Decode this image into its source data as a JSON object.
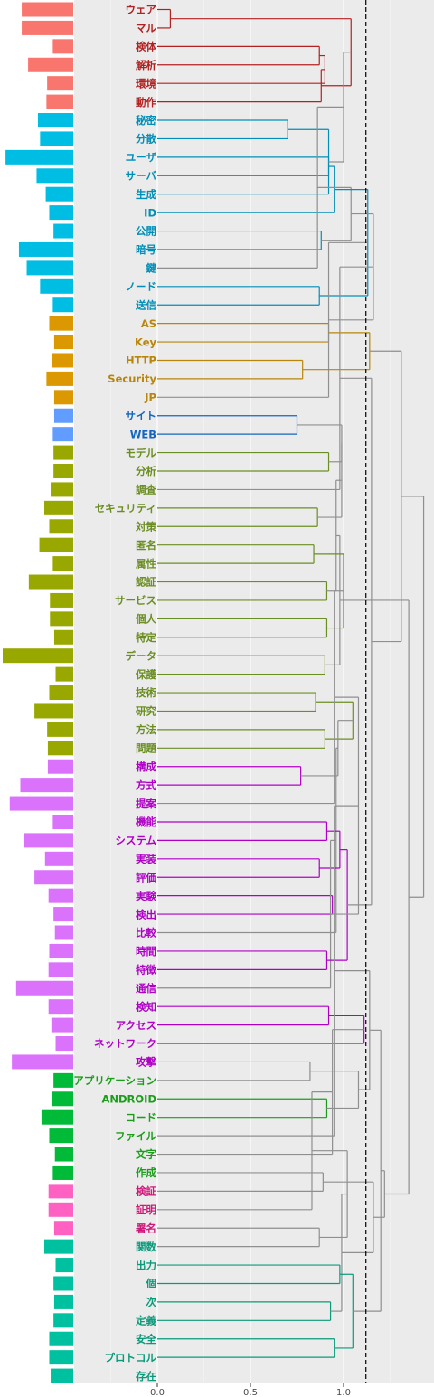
{
  "chart_data": {
    "type": "dendrogram",
    "title": "",
    "xlabel": "",
    "ylabel": "",
    "x_axis": {
      "range": [
        0,
        1.45
      ],
      "ticks": [
        0.0,
        0.5,
        1.0
      ],
      "tick_labels": [
        "0.0",
        "0.5",
        "1.0"
      ]
    },
    "cut_height": 1.12,
    "grid": true,
    "bars_max_value": 1.0,
    "group_colors": [
      "#b22222",
      "#008fb8",
      "#b8860b",
      "#1565c0",
      "#6b8e23",
      "#b000c8",
      "#1a9e1a",
      "#d0187a",
      "#0a9a7a"
    ],
    "bar_colors": [
      "#f8766d",
      "#00bde3",
      "#db9800",
      "#619cff",
      "#99a800",
      "#db72fb",
      "#00ba38",
      "#ff61c3",
      "#00c19f"
    ],
    "terms": [
      {
        "label": "ウェア",
        "group": 0,
        "bar": 0.73
      },
      {
        "label": "マル",
        "group": 0,
        "bar": 0.73
      },
      {
        "label": "検体",
        "group": 0,
        "bar": 0.29
      },
      {
        "label": "解析",
        "group": 0,
        "bar": 0.64
      },
      {
        "label": "環境",
        "group": 0,
        "bar": 0.37
      },
      {
        "label": "動作",
        "group": 0,
        "bar": 0.38
      },
      {
        "label": "秘密",
        "group": 1,
        "bar": 0.5
      },
      {
        "label": "分散",
        "group": 1,
        "bar": 0.47
      },
      {
        "label": "ユーザ",
        "group": 1,
        "bar": 0.96
      },
      {
        "label": "サーバ",
        "group": 1,
        "bar": 0.52
      },
      {
        "label": "生成",
        "group": 1,
        "bar": 0.39
      },
      {
        "label": "ID",
        "group": 1,
        "bar": 0.34
      },
      {
        "label": "公開",
        "group": 1,
        "bar": 0.28
      },
      {
        "label": "暗号",
        "group": 1,
        "bar": 0.77
      },
      {
        "label": "鍵",
        "group": 1,
        "bar": 0.66
      },
      {
        "label": "ノード",
        "group": 1,
        "bar": 0.47
      },
      {
        "label": "送信",
        "group": 1,
        "bar": 0.29
      },
      {
        "label": "AS",
        "group": 2,
        "bar": 0.34
      },
      {
        "label": "Key",
        "group": 2,
        "bar": 0.27
      },
      {
        "label": "HTTP",
        "group": 2,
        "bar": 0.3
      },
      {
        "label": "Security",
        "group": 2,
        "bar": 0.38
      },
      {
        "label": "JP",
        "group": 2,
        "bar": 0.27
      },
      {
        "label": "サイト",
        "group": 3,
        "bar": 0.27
      },
      {
        "label": "WEB",
        "group": 3,
        "bar": 0.29
      },
      {
        "label": "モデル",
        "group": 4,
        "bar": 0.28
      },
      {
        "label": "分析",
        "group": 4,
        "bar": 0.28
      },
      {
        "label": "調査",
        "group": 4,
        "bar": 0.32
      },
      {
        "label": "セキュリティ",
        "group": 4,
        "bar": 0.41
      },
      {
        "label": "対策",
        "group": 4,
        "bar": 0.34
      },
      {
        "label": "匿名",
        "group": 4,
        "bar": 0.48
      },
      {
        "label": "属性",
        "group": 4,
        "bar": 0.29
      },
      {
        "label": "認証",
        "group": 4,
        "bar": 0.63
      },
      {
        "label": "サービス",
        "group": 4,
        "bar": 0.33
      },
      {
        "label": "個人",
        "group": 4,
        "bar": 0.33
      },
      {
        "label": "特定",
        "group": 4,
        "bar": 0.27
      },
      {
        "label": "データ",
        "group": 4,
        "bar": 1.0
      },
      {
        "label": "保護",
        "group": 4,
        "bar": 0.25
      },
      {
        "label": "技術",
        "group": 4,
        "bar": 0.34
      },
      {
        "label": "研究",
        "group": 4,
        "bar": 0.55
      },
      {
        "label": "方法",
        "group": 4,
        "bar": 0.37
      },
      {
        "label": "問題",
        "group": 4,
        "bar": 0.36
      },
      {
        "label": "構成",
        "group": 5,
        "bar": 0.36
      },
      {
        "label": "方式",
        "group": 5,
        "bar": 0.75
      },
      {
        "label": "提案",
        "group": 5,
        "bar": 0.9
      },
      {
        "label": "機能",
        "group": 5,
        "bar": 0.29
      },
      {
        "label": "システム",
        "group": 5,
        "bar": 0.7
      },
      {
        "label": "実装",
        "group": 5,
        "bar": 0.4
      },
      {
        "label": "評価",
        "group": 5,
        "bar": 0.55
      },
      {
        "label": "実験",
        "group": 5,
        "bar": 0.35
      },
      {
        "label": "検出",
        "group": 5,
        "bar": 0.28
      },
      {
        "label": "比較",
        "group": 5,
        "bar": 0.26
      },
      {
        "label": "時間",
        "group": 5,
        "bar": 0.34
      },
      {
        "label": "特徴",
        "group": 5,
        "bar": 0.35
      },
      {
        "label": "通信",
        "group": 5,
        "bar": 0.81
      },
      {
        "label": "検知",
        "group": 5,
        "bar": 0.35
      },
      {
        "label": "アクセス",
        "group": 5,
        "bar": 0.31
      },
      {
        "label": "ネットワーク",
        "group": 5,
        "bar": 0.25
      },
      {
        "label": "攻撃",
        "group": 5,
        "bar": 0.87
      },
      {
        "label": "アプリケーション",
        "group": 6,
        "bar": 0.28
      },
      {
        "label": "ANDROID",
        "group": 6,
        "bar": 0.3
      },
      {
        "label": "コード",
        "group": 6,
        "bar": 0.45
      },
      {
        "label": "ファイル",
        "group": 6,
        "bar": 0.34
      },
      {
        "label": "文字",
        "group": 6,
        "bar": 0.26
      },
      {
        "label": "作成",
        "group": 6,
        "bar": 0.29
      },
      {
        "label": "検証",
        "group": 7,
        "bar": 0.35
      },
      {
        "label": "証明",
        "group": 7,
        "bar": 0.35
      },
      {
        "label": "署名",
        "group": 7,
        "bar": 0.27
      },
      {
        "label": "関数",
        "group": 8,
        "bar": 0.41
      },
      {
        "label": "出力",
        "group": 8,
        "bar": 0.25
      },
      {
        "label": "個",
        "group": 8,
        "bar": 0.28
      },
      {
        "label": "次",
        "group": 8,
        "bar": 0.27
      },
      {
        "label": "定義",
        "group": 8,
        "bar": 0.28
      },
      {
        "label": "安全",
        "group": 8,
        "bar": 0.34
      },
      {
        "label": "プロトコル",
        "group": 8,
        "bar": 0.34
      },
      {
        "label": "存在",
        "group": 8,
        "bar": 0.32
      }
    ],
    "merges": [
      [
        0,
        1,
        0.07
      ],
      [
        2,
        3,
        0.87
      ],
      [
        -2,
        4,
        0.9
      ],
      [
        -3,
        5,
        0.88
      ],
      [
        -4,
        -1,
        1.04
      ],
      [
        6,
        7,
        0.7
      ],
      [
        8,
        9,
        0.92
      ],
      [
        -6,
        10,
        0.92
      ],
      [
        -7,
        11,
        0.95
      ],
      [
        -8,
        -5,
        1.0
      ],
      [
        12,
        13,
        0.88
      ],
      [
        -10,
        14,
        0.86
      ],
      [
        15,
        16,
        0.87
      ],
      [
        -11,
        -12,
        1.04
      ],
      [
        -9,
        -13,
        1.13
      ],
      [
        17,
        18,
        0.92
      ],
      [
        19,
        20,
        0.78
      ],
      [
        -15,
        21,
        0.92
      ],
      [
        -16,
        -17,
        1.14
      ],
      [
        -14,
        -18,
        1.16
      ],
      [
        22,
        23,
        0.75
      ],
      [
        24,
        25,
        0.92
      ],
      [
        -20,
        26,
        0.98
      ],
      [
        27,
        28,
        0.86
      ],
      [
        -22,
        -21,
        0.99
      ],
      [
        29,
        30,
        0.84
      ],
      [
        31,
        32,
        0.91
      ],
      [
        -24,
        -25,
        0.99
      ],
      [
        33,
        34,
        0.91
      ],
      [
        35,
        36,
        0.9
      ],
      [
        -27,
        -28,
        0.96
      ],
      [
        37,
        38,
        0.85
      ],
      [
        39,
        40,
        0.9
      ],
      [
        -30,
        -31,
        0.98
      ],
      [
        -26,
        -29,
        1.0
      ],
      [
        -32,
        -33,
        1.05
      ],
      [
        41,
        42,
        0.77
      ],
      [
        -35,
        43,
        0.95
      ],
      [
        44,
        45,
        0.91
      ],
      [
        -36,
        -37,
        0.97
      ],
      [
        46,
        47,
        0.87
      ],
      [
        48,
        49,
        0.94
      ],
      [
        -40,
        50,
        0.96
      ],
      [
        -39,
        -41,
        0.98
      ],
      [
        51,
        52,
        0.91
      ],
      [
        -43,
        53,
        0.93
      ],
      [
        54,
        55,
        0.92
      ],
      [
        -45,
        -44,
        1.02
      ],
      [
        -38,
        -46,
        1.08
      ],
      [
        56,
        -47,
        1.11
      ],
      [
        57,
        58,
        0.82
      ],
      [
        59,
        60,
        0.91
      ],
      [
        -49,
        61,
        0.95
      ],
      [
        -50,
        62,
        0.94
      ],
      [
        -51,
        -52,
        1.08
      ],
      [
        63,
        64,
        0.89
      ],
      [
        -54,
        65,
        0.83
      ],
      [
        66,
        67,
        0.87
      ],
      [
        68,
        69,
        0.98
      ],
      [
        -58,
        -57,
        1.02
      ],
      [
        70,
        71,
        0.93
      ],
      [
        72,
        73,
        0.95
      ],
      [
        -60,
        -61,
        0.99
      ],
      [
        -59,
        -62,
        1.05
      ],
      [
        -53,
        -55,
        1.14
      ],
      [
        -63,
        -56,
        1.16
      ],
      [
        -64,
        -65,
        1.2
      ],
      [
        -23,
        -48,
        1.15
      ],
      [
        -66,
        -67,
        1.22
      ],
      [
        -19,
        -68,
        1.31
      ],
      [
        -34,
        -69,
        1.35
      ],
      [
        -70,
        -71,
        1.43
      ]
    ]
  }
}
